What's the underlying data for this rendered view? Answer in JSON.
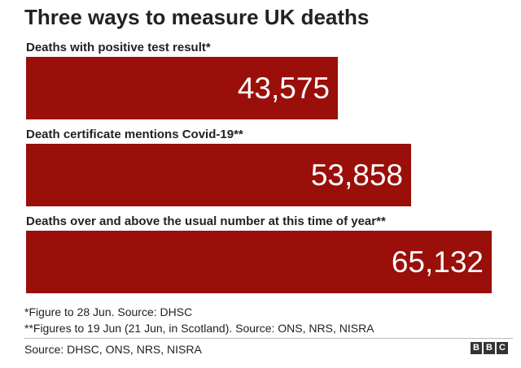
{
  "title": "Three ways to measure UK deaths",
  "chart_data": {
    "type": "bar",
    "orientation": "horizontal",
    "categories": [
      "Deaths with positive test result*",
      "Death certificate mentions Covid-19**",
      "Deaths over and above the usual number at this time of year**"
    ],
    "values": [
      43575,
      53858,
      65132
    ],
    "value_labels": [
      "43,575",
      "53,858",
      "65,132"
    ],
    "xlim": [
      0,
      65132
    ],
    "color": "#9a0f0a",
    "grid": false
  },
  "notes": [
    "*Figure to 28 Jun. Source: DHSC",
    "**Figures to 19 Jun (21 Jun, in Scotland). Source: ONS, NRS, NISRA"
  ],
  "source": "Source: DHSC, ONS, NRS, NISRA",
  "logo": [
    "B",
    "B",
    "C"
  ]
}
